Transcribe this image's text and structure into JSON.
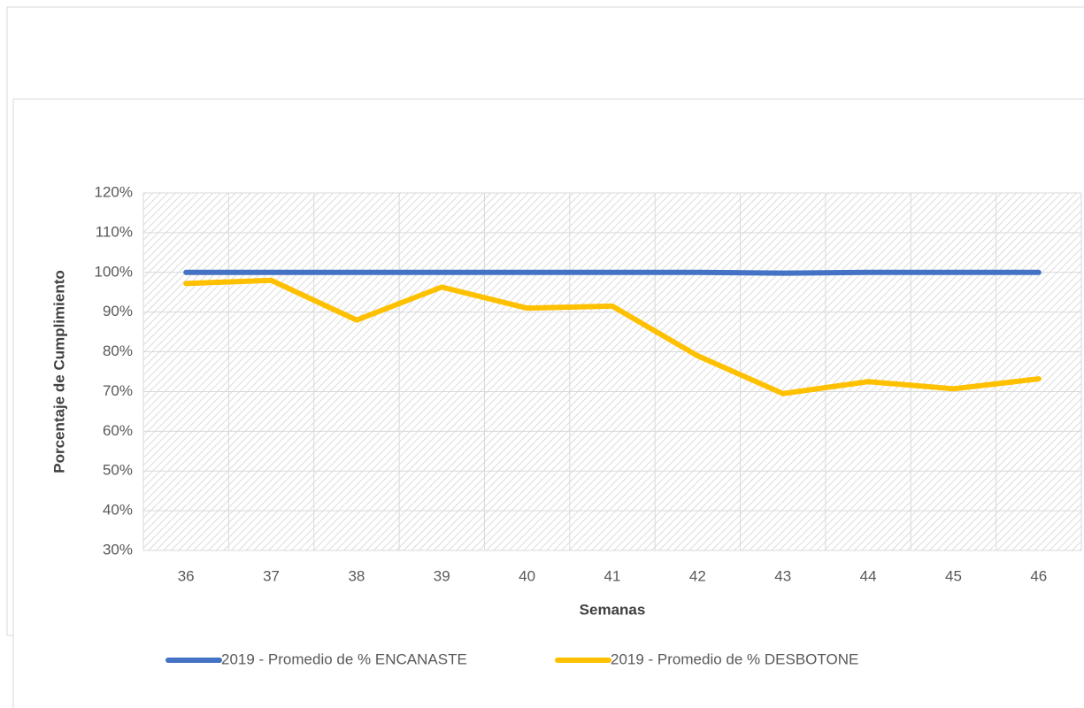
{
  "chart_data": {
    "type": "line",
    "x_label": "Semanas",
    "y_label": "Porcentaje de Cumplimiento",
    "categories": [
      "36",
      "37",
      "38",
      "39",
      "40",
      "41",
      "42",
      "43",
      "44",
      "45",
      "46"
    ],
    "series": [
      {
        "name": "2019 - Promedio de % ENCANASTE",
        "color": "#4472c4",
        "values": [
          100,
          100,
          100,
          100,
          100,
          100,
          100,
          99.8,
          100,
          100,
          100
        ]
      },
      {
        "name": "2019 - Promedio de % DESBOTONE",
        "color": "#ffc000",
        "values": [
          97.2,
          98,
          88,
          96.3,
          91,
          91.5,
          79,
          69.5,
          72.5,
          70.7,
          73.2
        ]
      }
    ],
    "ylim": [
      30,
      120
    ],
    "yticks": [
      {
        "value": 30,
        "label": "30%"
      },
      {
        "value": 40,
        "label": "40%"
      },
      {
        "value": 50,
        "label": "50%"
      },
      {
        "value": 60,
        "label": "60%"
      },
      {
        "value": 70,
        "label": "70%"
      },
      {
        "value": 80,
        "label": "80%"
      },
      {
        "value": 90,
        "label": "90%"
      },
      {
        "value": 100,
        "label": "100%"
      },
      {
        "value": 110,
        "label": "110%"
      },
      {
        "value": 120,
        "label": "120%"
      }
    ],
    "grid": true,
    "legend": "bottom"
  }
}
